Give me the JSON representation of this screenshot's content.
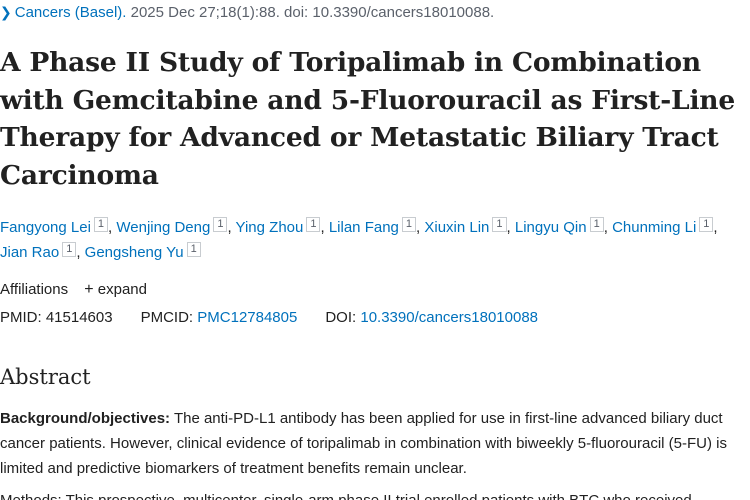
{
  "citation": {
    "journal": "Cancers (Basel).",
    "details": " 2025 Dec 27;18(1):88. doi: 10.3390/cancers18010088."
  },
  "title": "A Phase II Study of Toripalimab in Combination with Gemcitabine and 5-Fluorouracil as First-Line Therapy for Advanced or Metastatic Biliary Tract Carcinoma",
  "authors": [
    {
      "name": "Fangyong Lei",
      "aff": "1"
    },
    {
      "name": "Wenjing Deng",
      "aff": "1"
    },
    {
      "name": "Ying Zhou",
      "aff": "1"
    },
    {
      "name": "Lilan Fang",
      "aff": "1"
    },
    {
      "name": "Xiuxin Lin",
      "aff": "1"
    },
    {
      "name": "Lingyu Qin",
      "aff": "1"
    },
    {
      "name": "Chunming Li",
      "aff": "1"
    },
    {
      "name": "Jian Rao",
      "aff": "1"
    },
    {
      "name": "Gengsheng Yu",
      "aff": "1"
    }
  ],
  "affiliations": {
    "label": "Affiliations",
    "expand_icon": "plus-icon",
    "expand_label": "expand"
  },
  "ids": {
    "pmid_label": "PMID:",
    "pmid": "41514603",
    "pmcid_label": "PMCID:",
    "pmcid": "PMC12784805",
    "doi_label": "DOI:",
    "doi": "10.3390/cancers18010088"
  },
  "abstract": {
    "heading": "Abstract",
    "background_label": "Background/objectives:",
    "background_text": " The anti-PD-L1 antibody has been applied for use in first-line advanced biliary duct cancer patients. However, clinical evidence of toripalimab in combination with biweekly 5-fluorouracil (5-FU) is limited and predictive biomarkers of treatment benefits remain unclear.",
    "next_line": "Methods: This prospective, multicenter, single-arm phase II trial enrolled patients with BTC who received"
  }
}
